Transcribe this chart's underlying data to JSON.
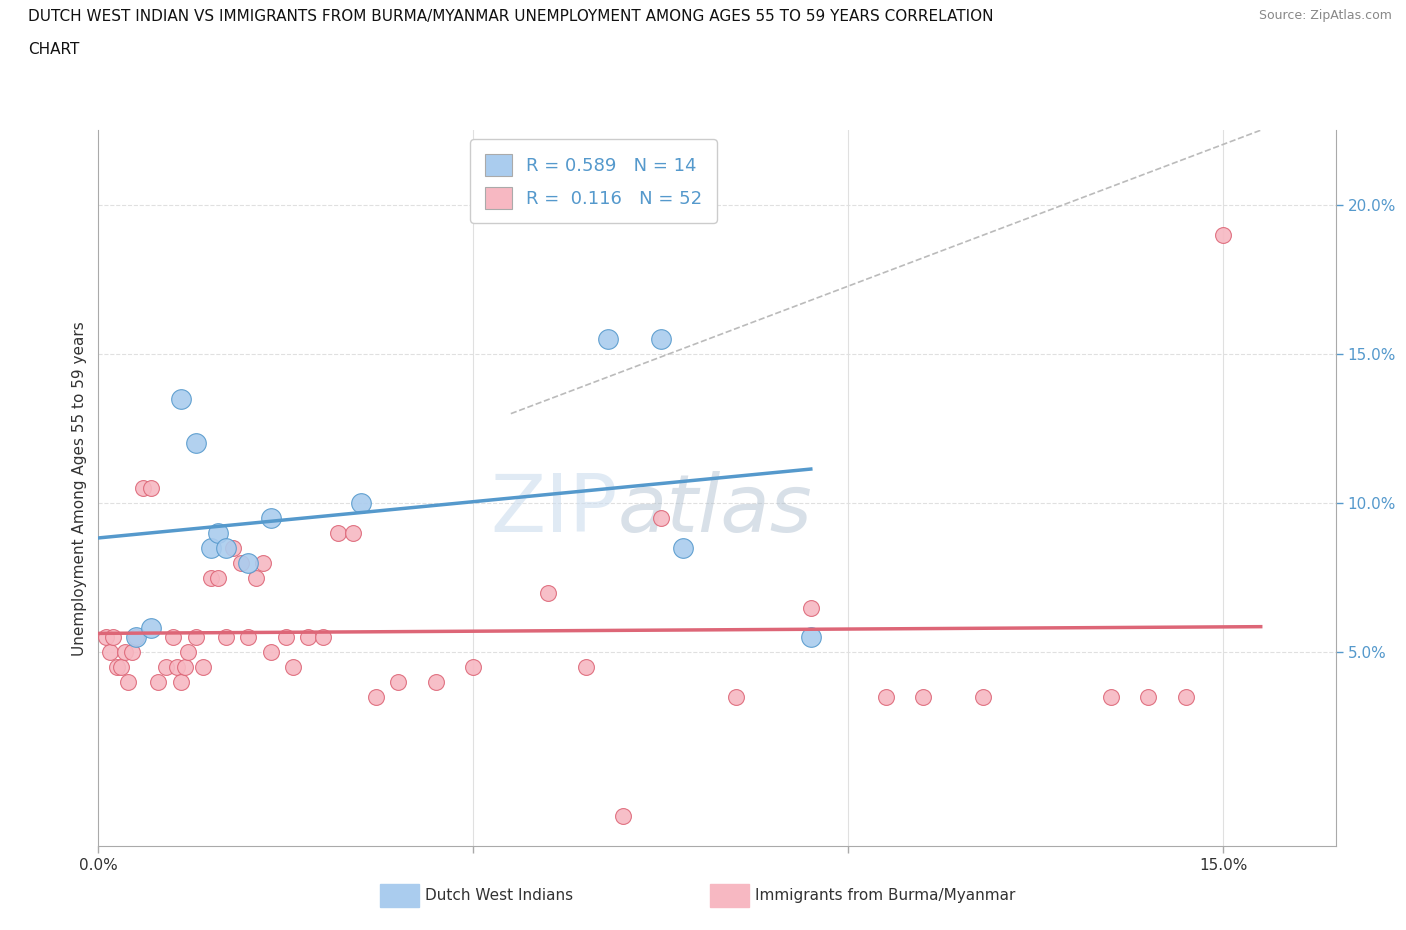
{
  "title_line1": "DUTCH WEST INDIAN VS IMMIGRANTS FROM BURMA/MYANMAR UNEMPLOYMENT AMONG AGES 55 TO 59 YEARS CORRELATION",
  "title_line2": "CHART",
  "source_text": "Source: ZipAtlas.com",
  "ylabel": "Unemployment Among Ages 55 to 59 years",
  "x_tick_positions": [
    0,
    5,
    10,
    15
  ],
  "x_tick_labels": [
    "0.0%",
    "",
    "",
    "15.0%"
  ],
  "xlim": [
    0.0,
    16.5
  ],
  "ylim": [
    -1.5,
    22.5
  ],
  "R_blue": 0.589,
  "N_blue": 14,
  "R_pink": 0.116,
  "N_pink": 52,
  "legend_label_blue": "Dutch West Indians",
  "legend_label_pink": "Immigrants from Burma/Myanmar",
  "watermark_zip": "ZIP",
  "watermark_atlas": "atlas",
  "blue_scatter_x": [
    0.5,
    0.7,
    1.1,
    1.3,
    1.5,
    1.6,
    1.7,
    2.0,
    2.3,
    3.5,
    6.8,
    7.5,
    7.8,
    9.5
  ],
  "blue_scatter_y": [
    5.5,
    5.8,
    13.5,
    12.0,
    8.5,
    9.0,
    8.5,
    8.0,
    9.5,
    10.0,
    15.5,
    15.5,
    8.5,
    5.5
  ],
  "pink_scatter_x": [
    0.1,
    0.15,
    0.2,
    0.25,
    0.3,
    0.35,
    0.4,
    0.45,
    0.5,
    0.6,
    0.7,
    0.8,
    0.9,
    1.0,
    1.05,
    1.1,
    1.15,
    1.2,
    1.3,
    1.4,
    1.5,
    1.6,
    1.7,
    1.8,
    1.9,
    2.0,
    2.1,
    2.2,
    2.3,
    2.5,
    2.6,
    2.8,
    3.0,
    3.2,
    3.4,
    3.7,
    4.0,
    4.5,
    5.0,
    6.0,
    6.5,
    7.0,
    7.5,
    8.5,
    9.5,
    10.5,
    11.0,
    11.8,
    13.5,
    14.0,
    14.5,
    15.0
  ],
  "pink_scatter_y": [
    5.5,
    5.0,
    5.5,
    4.5,
    4.5,
    5.0,
    4.0,
    5.0,
    5.5,
    10.5,
    10.5,
    4.0,
    4.5,
    5.5,
    4.5,
    4.0,
    4.5,
    5.0,
    5.5,
    4.5,
    7.5,
    7.5,
    5.5,
    8.5,
    8.0,
    5.5,
    7.5,
    8.0,
    5.0,
    5.5,
    4.5,
    5.5,
    5.5,
    9.0,
    9.0,
    3.5,
    4.0,
    4.0,
    4.5,
    7.0,
    4.5,
    -0.5,
    9.5,
    3.5,
    6.5,
    3.5,
    3.5,
    3.5,
    3.5,
    3.5,
    3.5,
    19.0
  ],
  "blue_color": "#aaccee",
  "pink_color": "#f7b8c2",
  "blue_line_color": "#5599cc",
  "pink_line_color": "#dd6677",
  "diag_color": "#bbbbbb",
  "bg_color": "#ffffff",
  "grid_color": "#e0e0e0",
  "right_tick_color": "#5599cc",
  "yticks_right": [
    5,
    10,
    15,
    20
  ],
  "ytick_labels_right": [
    "5.0%",
    "10.0%",
    "15.0%",
    "20.0%"
  ]
}
